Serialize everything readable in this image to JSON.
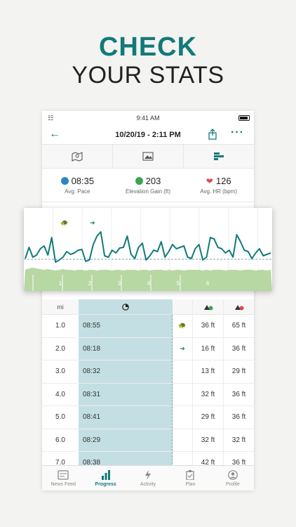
{
  "promo": {
    "line1": "CHECK",
    "line2": "YOUR STATS"
  },
  "status_bar": {
    "time": "9:41 AM"
  },
  "nav": {
    "title": "10/20/19 - 2:11 PM"
  },
  "view_tabs": [
    {
      "icon": "map-icon"
    },
    {
      "icon": "photo-icon"
    },
    {
      "icon": "splits-icon"
    }
  ],
  "stats": [
    {
      "value": "08:35",
      "label": "Avg. Pace",
      "icon": "pace-icon",
      "color": "#2a86c6"
    },
    {
      "value": "203",
      "label": "Elevation Gain (ft)",
      "icon": "elevation-icon",
      "color": "#3aa44e"
    },
    {
      "value": "126",
      "label": "Avg. HR (bpm)",
      "icon": "heart-icon",
      "color": "#e04a4a"
    }
  ],
  "chart_data": {
    "type": "line",
    "title": "",
    "x_ticks": [
      "1",
      "2",
      "3",
      "4",
      "5",
      "6"
    ],
    "series": [
      {
        "values": [
          60,
          44,
          58,
          55,
          46,
          42,
          55,
          30,
          65,
          62,
          58,
          50,
          54,
          52,
          48,
          47,
          64,
          62,
          40,
          28,
          22,
          56,
          58,
          48,
          52,
          45,
          44,
          28,
          54,
          60,
          44,
          38,
          62,
          56,
          48,
          50,
          36,
          58,
          50,
          40,
          46,
          44,
          42,
          58,
          60,
          46,
          40,
          62,
          58,
          30,
          32,
          44,
          46,
          52,
          48,
          58,
          26,
          36,
          48,
          50,
          60,
          52,
          46,
          56,
          54,
          52
        ]
      },
      {
        "values": [
          80,
          78,
          77,
          78,
          79,
          80,
          79,
          80,
          81,
          80,
          79,
          80,
          80,
          81,
          80,
          80,
          81,
          80,
          80,
          81,
          80,
          80,
          80,
          81,
          80,
          80,
          81,
          80,
          80,
          80,
          81,
          80,
          80,
          81,
          80,
          80,
          80,
          81,
          80,
          81,
          80,
          80,
          81,
          80,
          80,
          80,
          80,
          81,
          80,
          81,
          80,
          80,
          80,
          81,
          80,
          80,
          80,
          81,
          80,
          80,
          80,
          81,
          80,
          80,
          81,
          80
        ]
      }
    ],
    "avg_line": 55,
    "color_line": "#127a78",
    "color_area": "#b7d7a3"
  },
  "table": {
    "headers": {
      "mi": "mi",
      "pace_icon": "stopwatch-icon",
      "gain_icon": "elevation-gain-icon",
      "loss_icon": "elevation-loss-icon"
    },
    "rows": [
      {
        "mi": "1.0",
        "pace": "08:55",
        "icon": "turtle",
        "gain": "36 ft",
        "loss": "65 ft",
        "frac": 0.98
      },
      {
        "mi": "2.0",
        "pace": "08:18",
        "icon": "rabbit",
        "gain": "16 ft",
        "loss": "36 ft",
        "frac": 0.93
      },
      {
        "mi": "3.0",
        "pace": "08:32",
        "icon": "",
        "gain": "13 ft",
        "loss": "29 ft",
        "frac": 0.95
      },
      {
        "mi": "4.0",
        "pace": "08:31",
        "icon": "",
        "gain": "32 ft",
        "loss": "36 ft",
        "frac": 0.95
      },
      {
        "mi": "5.0",
        "pace": "08:41",
        "icon": "",
        "gain": "29 ft",
        "loss": "36 ft",
        "frac": 0.96
      },
      {
        "mi": "6.0",
        "pace": "08:29",
        "icon": "",
        "gain": "32 ft",
        "loss": "32 ft",
        "frac": 0.95
      },
      {
        "mi": "7.0",
        "pace": "08:38",
        "icon": "",
        "gain": "42 ft",
        "loss": "36 ft",
        "frac": 0.96
      }
    ]
  },
  "tabbar": [
    {
      "label": "News Feed",
      "icon": "news-feed-icon",
      "active": false
    },
    {
      "label": "Progress",
      "icon": "progress-icon",
      "active": true
    },
    {
      "label": "Activity",
      "icon": "activity-icon",
      "active": false
    },
    {
      "label": "Plan",
      "icon": "plan-icon",
      "active": false
    },
    {
      "label": "Profile",
      "icon": "profile-icon",
      "active": false
    }
  ]
}
